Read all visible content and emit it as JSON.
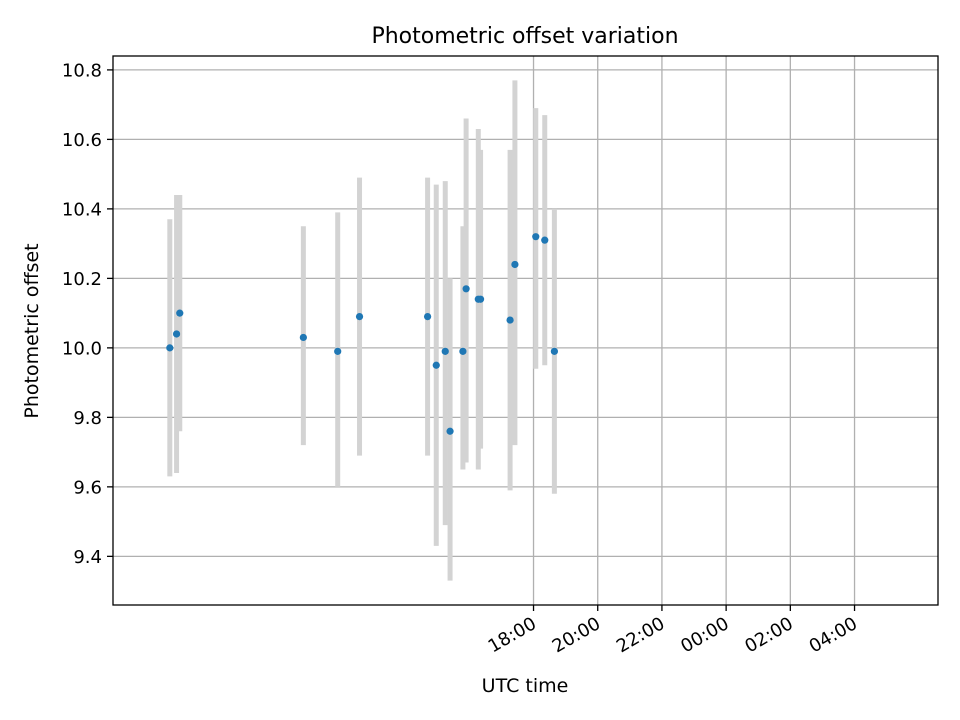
{
  "chart_data": {
    "type": "scatter",
    "title": "Photometric offset variation",
    "xlabel": "UTC time",
    "ylabel": "Photometric offset",
    "x_unit": "hours (relative to 00:00 UTC)",
    "xlim": [
      -19.1,
      6.6
    ],
    "ylim": [
      9.26,
      10.84
    ],
    "grid": true,
    "legend": "none",
    "x_ticks": [
      {
        "value": -6,
        "label": "18:00"
      },
      {
        "value": -4,
        "label": "20:00"
      },
      {
        "value": -2,
        "label": "22:00"
      },
      {
        "value": 0,
        "label": "00:00"
      },
      {
        "value": 2,
        "label": "02:00"
      },
      {
        "value": 4,
        "label": "04:00"
      }
    ],
    "y_ticks": [
      {
        "value": 9.4,
        "label": "9.4"
      },
      {
        "value": 9.6,
        "label": "9.6"
      },
      {
        "value": 9.8,
        "label": "9.8"
      },
      {
        "value": 10.0,
        "label": "10.0"
      },
      {
        "value": 10.2,
        "label": "10.2"
      },
      {
        "value": 10.4,
        "label": "10.4"
      },
      {
        "value": 10.6,
        "label": "10.6"
      },
      {
        "value": 10.8,
        "label": "10.8"
      }
    ],
    "colors": {
      "point": "#1f77b4",
      "errorbar": "#d3d3d3",
      "grid": "#b0b0b0"
    },
    "series": [
      {
        "points": [
          {
            "x": -17.33,
            "y": 10.0,
            "low": 9.63,
            "high": 10.37
          },
          {
            "x": -17.12,
            "y": 10.04,
            "low": 9.64,
            "high": 10.44
          },
          {
            "x": -17.02,
            "y": 10.1,
            "low": 9.76,
            "high": 10.44
          },
          {
            "x": -13.17,
            "y": 10.03,
            "low": 9.72,
            "high": 10.35
          },
          {
            "x": -12.1,
            "y": 9.99,
            "low": 9.6,
            "high": 10.39
          },
          {
            "x": -11.42,
            "y": 10.09,
            "low": 9.69,
            "high": 10.49
          },
          {
            "x": -9.3,
            "y": 10.09,
            "low": 9.69,
            "high": 10.49
          },
          {
            "x": -9.03,
            "y": 9.95,
            "low": 9.43,
            "high": 10.47
          },
          {
            "x": -8.75,
            "y": 9.99,
            "low": 9.49,
            "high": 10.48
          },
          {
            "x": -8.6,
            "y": 9.76,
            "low": 9.33,
            "high": 10.2
          },
          {
            "x": -8.2,
            "y": 9.99,
            "low": 9.65,
            "high": 10.35
          },
          {
            "x": -8.1,
            "y": 10.17,
            "low": 9.67,
            "high": 10.66
          },
          {
            "x": -7.72,
            "y": 10.14,
            "low": 9.65,
            "high": 10.63
          },
          {
            "x": -7.65,
            "y": 10.14,
            "low": 9.71,
            "high": 10.57
          },
          {
            "x": -6.73,
            "y": 10.08,
            "low": 9.59,
            "high": 10.57
          },
          {
            "x": -6.58,
            "y": 10.24,
            "low": 9.72,
            "high": 10.77
          },
          {
            "x": -5.93,
            "y": 10.32,
            "low": 9.94,
            "high": 10.69
          },
          {
            "x": -5.65,
            "y": 10.31,
            "low": 9.95,
            "high": 10.67
          },
          {
            "x": -5.35,
            "y": 9.99,
            "low": 9.58,
            "high": 10.4
          }
        ]
      }
    ]
  }
}
